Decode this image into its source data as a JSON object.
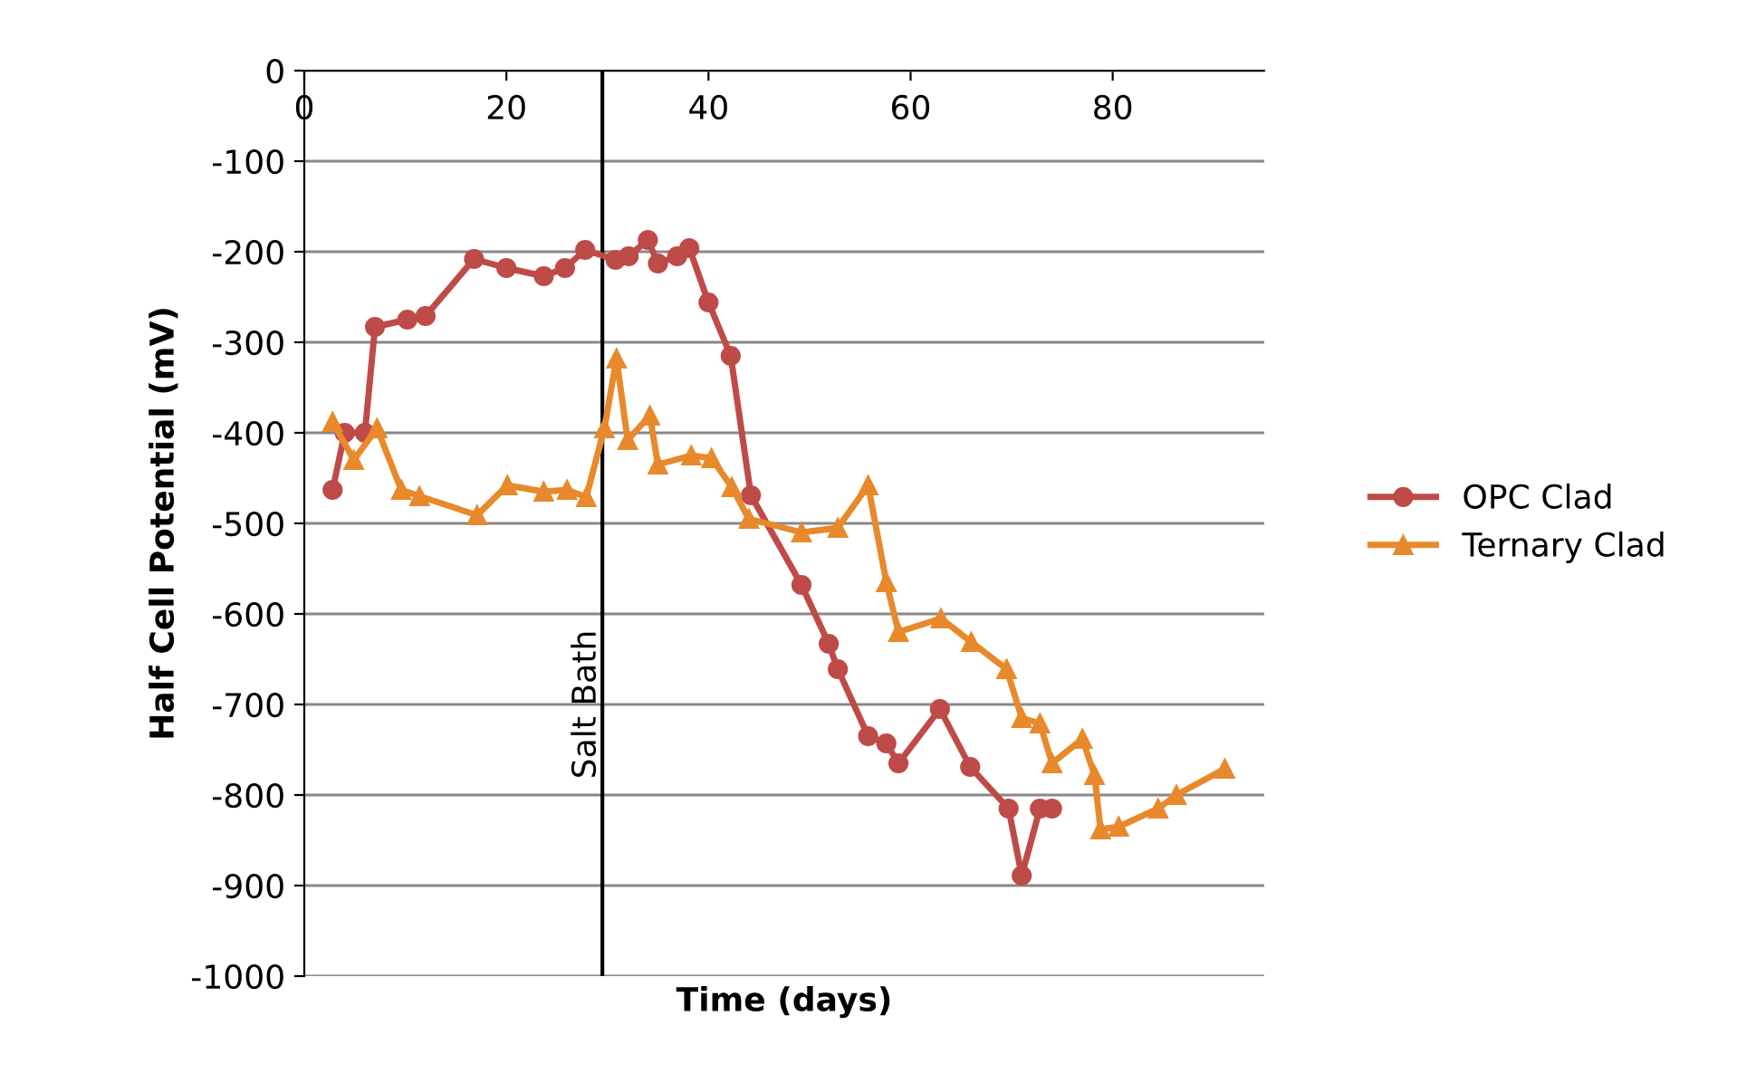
{
  "chart_data": {
    "type": "line",
    "xlabel": "Time (days)",
    "ylabel": "Half Cell Potential (mV)",
    "xlim": [
      0,
      95
    ],
    "xticks": [
      0,
      20,
      40,
      60,
      80
    ],
    "ylim": [
      -1000,
      0
    ],
    "yticks": [
      -1000,
      -900,
      -800,
      -700,
      -600,
      -500,
      -400,
      -300,
      -200,
      -100,
      0
    ],
    "grid": "y",
    "legend": "right",
    "line_style": "solid",
    "ref_lines": [
      {
        "axis": "x",
        "value": 29.5,
        "label": "Salt Bath",
        "color": "#000000"
      }
    ],
    "series": [
      {
        "name": "OPC Clad",
        "color": "#be4b48",
        "marker": "circle",
        "x": [
          2.8,
          4,
          6,
          7,
          10.2,
          12,
          16.8,
          20,
          23.7,
          25.8,
          27.8,
          30.8,
          32.1,
          34,
          35,
          36.9,
          38.1,
          40,
          42.2,
          44.2,
          49.2,
          51.9,
          52.8,
          55.8,
          57.6,
          58.8,
          62.9,
          65.9,
          69.7,
          71,
          72.8,
          74
        ],
        "values": [
          -463,
          -400,
          -400,
          -283,
          -275,
          -271,
          -208,
          -218,
          -227,
          -218,
          -198,
          -209,
          -205,
          -187,
          -213,
          -205,
          -196,
          -256,
          -315,
          -469,
          -568,
          -633,
          -661,
          -735,
          -743,
          -765,
          -705,
          -769,
          -815,
          -889,
          -815,
          -815
        ]
      },
      {
        "name": "Ternary Clad",
        "color": "#e8892b",
        "marker": "triangle",
        "x": [
          2.8,
          4.9,
          7.2,
          9.6,
          11.4,
          17.1,
          20.1,
          23.7,
          26,
          27.9,
          29.7,
          30.9,
          32,
          34.2,
          35,
          38.3,
          40.3,
          42.3,
          44,
          49.2,
          52.8,
          55.8,
          57.6,
          58.8,
          63,
          66,
          69.5,
          71,
          72.8,
          74,
          77,
          78.2,
          78.8,
          80.6,
          84.5,
          86.3,
          91.1
        ],
        "values": [
          -388,
          -430,
          -395,
          -463,
          -470,
          -491,
          -458,
          -465,
          -463,
          -471,
          -395,
          -318,
          -408,
          -381,
          -435,
          -425,
          -428,
          -460,
          -495,
          -510,
          -505,
          -458,
          -565,
          -620,
          -605,
          -631,
          -661,
          -715,
          -721,
          -765,
          -738,
          -778,
          -838,
          -835,
          -815,
          -800,
          -771
        ]
      }
    ]
  }
}
